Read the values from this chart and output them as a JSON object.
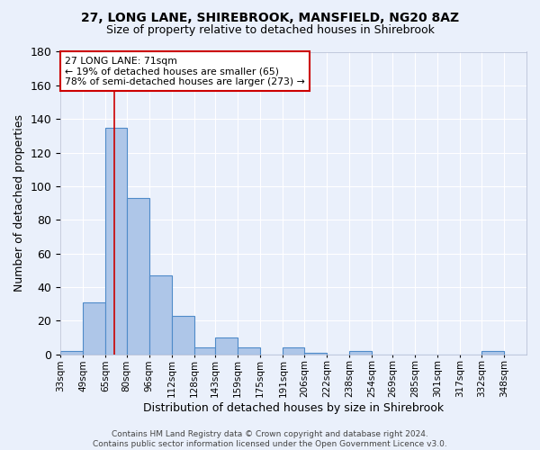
{
  "title1": "27, LONG LANE, SHIREBROOK, MANSFIELD, NG20 8AZ",
  "title2": "Size of property relative to detached houses in Shirebrook",
  "xlabel": "Distribution of detached houses by size in Shirebrook",
  "ylabel": "Number of detached properties",
  "footer1": "Contains HM Land Registry data © Crown copyright and database right 2024.",
  "footer2": "Contains public sector information licensed under the Open Government Licence v3.0.",
  "categories": [
    "33sqm",
    "49sqm",
    "65sqm",
    "80sqm",
    "96sqm",
    "112sqm",
    "128sqm",
    "143sqm",
    "159sqm",
    "175sqm",
    "191sqm",
    "206sqm",
    "222sqm",
    "238sqm",
    "254sqm",
    "269sqm",
    "285sqm",
    "301sqm",
    "317sqm",
    "332sqm",
    "348sqm"
  ],
  "values": [
    2,
    31,
    135,
    93,
    47,
    23,
    4,
    10,
    4,
    0,
    4,
    1,
    0,
    2,
    0,
    0,
    0,
    0,
    0,
    2,
    0
  ],
  "bar_color": "#aec6e8",
  "bar_edge_color": "#4f8bc9",
  "bg_color": "#eaf0fb",
  "grid_color": "#ffffff",
  "vline_x": 71,
  "vline_color": "#cc0000",
  "annotation_text": "27 LONG LANE: 71sqm\n← 19% of detached houses are smaller (65)\n78% of semi-detached houses are larger (273) →",
  "annotation_box_color": "#ffffff",
  "annotation_box_edge": "#cc0000",
  "ylim": [
    0,
    180
  ],
  "yticks": [
    0,
    20,
    40,
    60,
    80,
    100,
    120,
    140,
    160,
    180
  ],
  "bin_edges": [
    33,
    49,
    65,
    80,
    96,
    112,
    128,
    143,
    159,
    175,
    191,
    206,
    222,
    238,
    254,
    269,
    285,
    301,
    317,
    332,
    348,
    364
  ]
}
